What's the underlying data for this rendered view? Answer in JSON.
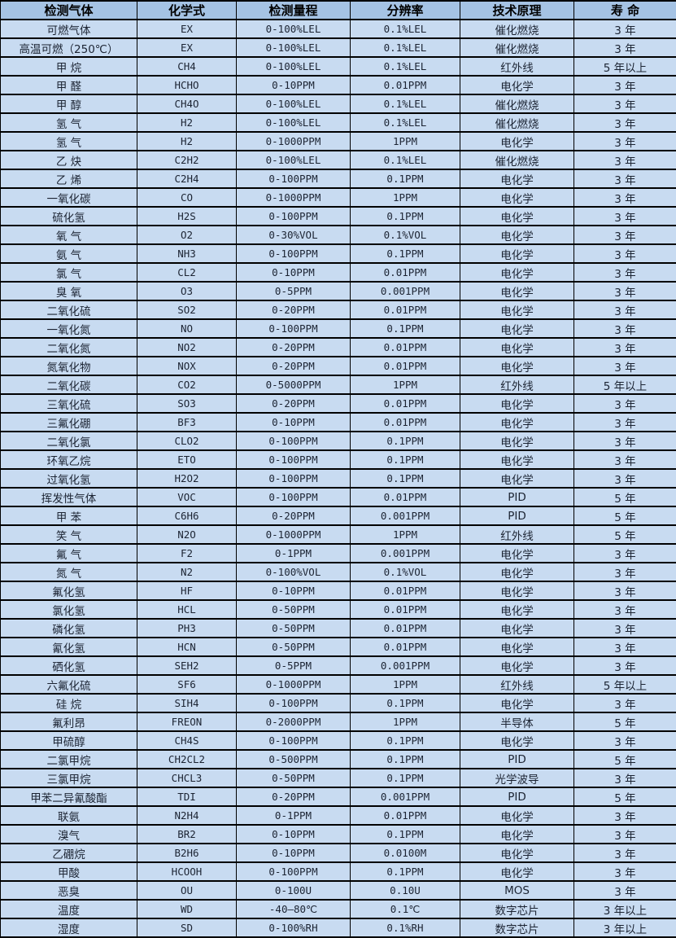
{
  "table": {
    "colors": {
      "header_bg": "#a5c3e4",
      "row_bg": "#c8dbf1",
      "border": "#000000",
      "text": "#1c2433"
    },
    "columns": [
      {
        "key": "gas",
        "label": "检测气体",
        "latin": false
      },
      {
        "key": "formula",
        "label": "化学式",
        "latin": true
      },
      {
        "key": "range",
        "label": "检测量程",
        "latin": true
      },
      {
        "key": "resolution",
        "label": "分辨率",
        "latin": true
      },
      {
        "key": "principle",
        "label": "技术原理",
        "latin": false
      },
      {
        "key": "lifespan",
        "label": "寿 命",
        "latin": false
      }
    ],
    "rows": [
      {
        "gas": "可燃气体",
        "formula": "EX",
        "range": "0-100%LEL",
        "resolution": "0.1%LEL",
        "principle": "催化燃烧",
        "lifespan": "3 年"
      },
      {
        "gas": "高温可燃（250℃）",
        "formula": "EX",
        "range": "0-100%LEL",
        "resolution": "0.1%LEL",
        "principle": "催化燃烧",
        "lifespan": "3 年"
      },
      {
        "gas": "甲 烷",
        "formula": "CH4",
        "range": "0-100%LEL",
        "resolution": "0.1%LEL",
        "principle": "红外线",
        "lifespan": "5 年以上"
      },
      {
        "gas": "甲 醛",
        "formula": "HCHO",
        "range": "0-10PPM",
        "resolution": "0.01PPM",
        "principle": "电化学",
        "lifespan": "3 年"
      },
      {
        "gas": "甲 醇",
        "formula": "CH4O",
        "range": "0-100%LEL",
        "resolution": "0.1%LEL",
        "principle": "催化燃烧",
        "lifespan": "3 年"
      },
      {
        "gas": "氢 气",
        "formula": "H2",
        "range": "0-100%LEL",
        "resolution": "0.1%LEL",
        "principle": "催化燃烧",
        "lifespan": "3 年"
      },
      {
        "gas": "氢 气",
        "formula": "H2",
        "range": "0-1000PPM",
        "resolution": "1PPM",
        "principle": "电化学",
        "lifespan": "3 年"
      },
      {
        "gas": "乙 炔",
        "formula": "C2H2",
        "range": "0-100%LEL",
        "resolution": "0.1%LEL",
        "principle": "催化燃烧",
        "lifespan": "3 年"
      },
      {
        "gas": "乙 烯",
        "formula": "C2H4",
        "range": "0-100PPM",
        "resolution": "0.1PPM",
        "principle": "电化学",
        "lifespan": "3 年"
      },
      {
        "gas": "一氧化碳",
        "formula": "CO",
        "range": "0-1000PPM",
        "resolution": "1PPM",
        "principle": "电化学",
        "lifespan": "3 年"
      },
      {
        "gas": "硫化氢",
        "formula": "H2S",
        "range": "0-100PPM",
        "resolution": "0.1PPM",
        "principle": "电化学",
        "lifespan": "3 年"
      },
      {
        "gas": "氧 气",
        "formula": "O2",
        "range": "0-30%VOL",
        "resolution": "0.1%VOL",
        "principle": "电化学",
        "lifespan": "3 年"
      },
      {
        "gas": "氨 气",
        "formula": "NH3",
        "range": "0-100PPM",
        "resolution": "0.1PPM",
        "principle": "电化学",
        "lifespan": "3 年"
      },
      {
        "gas": "氯 气",
        "formula": "CL2",
        "range": "0-10PPM",
        "resolution": "0.01PPM",
        "principle": "电化学",
        "lifespan": "3 年"
      },
      {
        "gas": "臭 氧",
        "formula": "O3",
        "range": "0-5PPM",
        "resolution": "0.001PPM",
        "principle": "电化学",
        "lifespan": "3 年"
      },
      {
        "gas": "二氧化硫",
        "formula": "SO2",
        "range": "0-20PPM",
        "resolution": "0.01PPM",
        "principle": "电化学",
        "lifespan": "3 年"
      },
      {
        "gas": "一氧化氮",
        "formula": "NO",
        "range": "0-100PPM",
        "resolution": "0.1PPM",
        "principle": "电化学",
        "lifespan": "3 年"
      },
      {
        "gas": "二氧化氮",
        "formula": "NO2",
        "range": "0-20PPM",
        "resolution": "0.01PPM",
        "principle": "电化学",
        "lifespan": "3 年"
      },
      {
        "gas": "氮氧化物",
        "formula": "NOX",
        "range": "0-20PPM",
        "resolution": "0.01PPM",
        "principle": "电化学",
        "lifespan": "3 年"
      },
      {
        "gas": "二氧化碳",
        "formula": "CO2",
        "range": "0-5000PPM",
        "resolution": "1PPM",
        "principle": "红外线",
        "lifespan": "5 年以上"
      },
      {
        "gas": "三氧化硫",
        "formula": "SO3",
        "range": "0-20PPM",
        "resolution": "0.01PPM",
        "principle": "电化学",
        "lifespan": "3 年"
      },
      {
        "gas": "三氟化硼",
        "formula": "BF3",
        "range": "0-10PPM",
        "resolution": "0.01PPM",
        "principle": "电化学",
        "lifespan": "3 年"
      },
      {
        "gas": "二氧化氯",
        "formula": "CLO2",
        "range": "0-100PPM",
        "resolution": "0.1PPM",
        "principle": "电化学",
        "lifespan": "3 年"
      },
      {
        "gas": "环氧乙烷",
        "formula": "ETO",
        "range": "0-100PPM",
        "resolution": "0.1PPM",
        "principle": "电化学",
        "lifespan": "3 年"
      },
      {
        "gas": "过氧化氢",
        "formula": "H2O2",
        "range": "0-100PPM",
        "resolution": "0.1PPM",
        "principle": "电化学",
        "lifespan": "3 年"
      },
      {
        "gas": "挥发性气体",
        "formula": "VOC",
        "range": "0-100PPM",
        "resolution": "0.01PPM",
        "principle": "PID",
        "lifespan": "5 年"
      },
      {
        "gas": "甲 苯",
        "formula": "C6H6",
        "range": "0-20PPM",
        "resolution": "0.001PPM",
        "principle": "PID",
        "lifespan": "5 年"
      },
      {
        "gas": "笑 气",
        "formula": "N2O",
        "range": "0-1000PPM",
        "resolution": "1PPM",
        "principle": "红外线",
        "lifespan": "5 年"
      },
      {
        "gas": "氟 气",
        "formula": "F2",
        "range": "0-1PPM",
        "resolution": "0.001PPM",
        "principle": "电化学",
        "lifespan": "3 年"
      },
      {
        "gas": "氮 气",
        "formula": "N2",
        "range": "0-100%VOL",
        "resolution": "0.1%VOL",
        "principle": "电化学",
        "lifespan": "3 年"
      },
      {
        "gas": "氟化氢",
        "formula": "HF",
        "range": "0-10PPM",
        "resolution": "0.01PPM",
        "principle": "电化学",
        "lifespan": "3 年"
      },
      {
        "gas": "氯化氢",
        "formula": "HCL",
        "range": "0-50PPM",
        "resolution": "0.01PPM",
        "principle": "电化学",
        "lifespan": "3 年"
      },
      {
        "gas": "磷化氢",
        "formula": "PH3",
        "range": "0-50PPM",
        "resolution": "0.01PPM",
        "principle": "电化学",
        "lifespan": "3 年"
      },
      {
        "gas": "氰化氢",
        "formula": "HCN",
        "range": "0-50PPM",
        "resolution": "0.01PPM",
        "principle": "电化学",
        "lifespan": "3 年"
      },
      {
        "gas": "硒化氢",
        "formula": "SEH2",
        "range": "0-5PPM",
        "resolution": "0.001PPM",
        "principle": "电化学",
        "lifespan": "3 年"
      },
      {
        "gas": "六氟化硫",
        "formula": "SF6",
        "range": "0-1000PPM",
        "resolution": "1PPM",
        "principle": "红外线",
        "lifespan": "5 年以上"
      },
      {
        "gas": "硅 烷",
        "formula": "SIH4",
        "range": "0-100PPM",
        "resolution": "0.1PPM",
        "principle": "电化学",
        "lifespan": "3 年"
      },
      {
        "gas": "氟利昂",
        "formula": "FREON",
        "range": "0-2000PPM",
        "resolution": "1PPM",
        "principle": "半导体",
        "lifespan": "5 年"
      },
      {
        "gas": "甲硫醇",
        "formula": "CH4S",
        "range": "0-100PPM",
        "resolution": "0.1PPM",
        "principle": "电化学",
        "lifespan": "3 年"
      },
      {
        "gas": "二氯甲烷",
        "formula": "CH2CL2",
        "range": "0-500PPM",
        "resolution": "0.1PPM",
        "principle": "PID",
        "lifespan": "5 年"
      },
      {
        "gas": "三氯甲烷",
        "formula": "CHCL3",
        "range": "0-50PPM",
        "resolution": "0.1PPM",
        "principle": "光学波导",
        "lifespan": "3 年"
      },
      {
        "gas": "甲苯二异氰酸酯",
        "formula": "TDI",
        "range": "0-20PPM",
        "resolution": "0.001PPM",
        "principle": "PID",
        "lifespan": "5 年"
      },
      {
        "gas": "联氨",
        "formula": "N2H4",
        "range": "0-1PPM",
        "resolution": "0.01PPM",
        "principle": "电化学",
        "lifespan": "3 年"
      },
      {
        "gas": "溴气",
        "formula": "BR2",
        "range": "0-10PPM",
        "resolution": "0.1PPM",
        "principle": "电化学",
        "lifespan": "3 年"
      },
      {
        "gas": "乙硼烷",
        "formula": "B2H6",
        "range": "0-10PPM",
        "resolution": "0.0100M",
        "principle": "电化学",
        "lifespan": "3 年"
      },
      {
        "gas": "甲酸",
        "formula": "HCOOH",
        "range": "0-100PPM",
        "resolution": "0.1PPM",
        "principle": "电化学",
        "lifespan": "3 年"
      },
      {
        "gas": "恶臭",
        "formula": "OU",
        "range": "0-100U",
        "resolution": "0.10U",
        "principle": "MOS",
        "lifespan": "3 年"
      },
      {
        "gas": "温度",
        "formula": "WD",
        "range": "-40—80℃",
        "resolution": "0.1℃",
        "principle": "数字芯片",
        "lifespan": "3 年以上"
      },
      {
        "gas": "湿度",
        "formula": "SD",
        "range": "0-100%RH",
        "resolution": "0.1%RH",
        "principle": "数字芯片",
        "lifespan": "3 年以上"
      }
    ]
  }
}
